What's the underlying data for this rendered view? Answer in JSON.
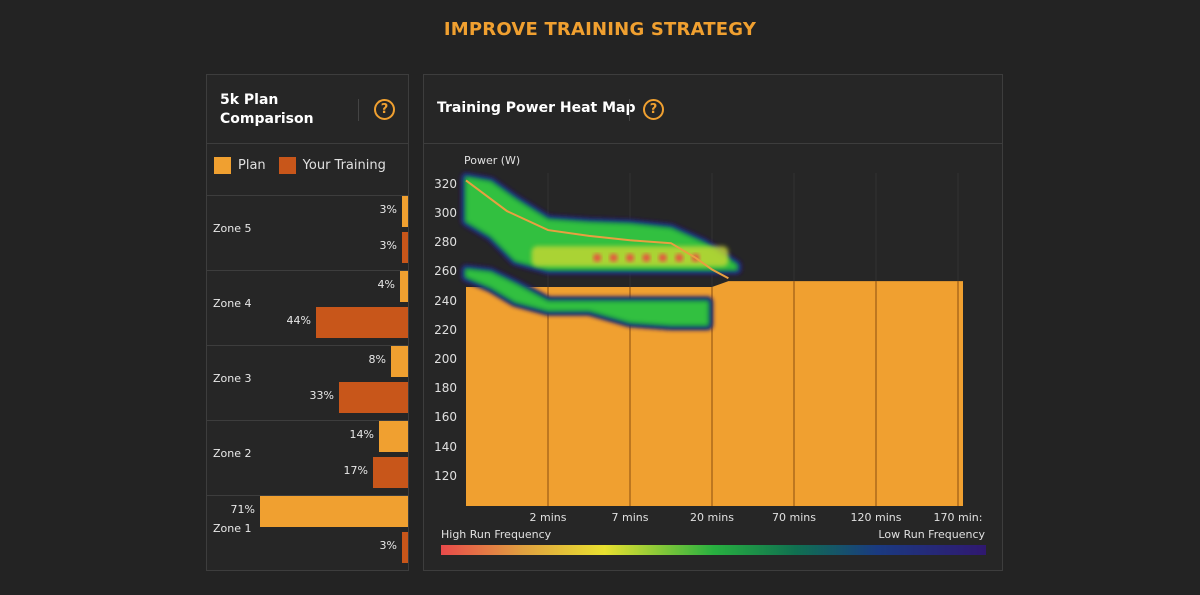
{
  "page_title": "IMPROVE TRAINING STRATEGY",
  "colors": {
    "accent": "#f0a030",
    "plan": "#f0a030",
    "your_training": "#c8561a",
    "background": "#232323",
    "card": "#262626"
  },
  "left_panel": {
    "title_line1": "5k Plan",
    "title_line2": "Comparison",
    "help_icon": "?",
    "legend": [
      {
        "label": "Plan",
        "color": "#f0a030"
      },
      {
        "label": "Your Training",
        "color": "#c8561a"
      }
    ],
    "zones": [
      {
        "label": "Zone 5",
        "plan": 3,
        "plan_label": "3%",
        "yours": 3,
        "yours_label": "3%"
      },
      {
        "label": "Zone 4",
        "plan": 4,
        "plan_label": "4%",
        "yours": 44,
        "yours_label": "44%"
      },
      {
        "label": "Zone 3",
        "plan": 8,
        "plan_label": "8%",
        "yours": 33,
        "yours_label": "33%"
      },
      {
        "label": "Zone 2",
        "plan": 14,
        "plan_label": "14%",
        "yours": 17,
        "yours_label": "17%"
      },
      {
        "label": "Zone 1",
        "plan": 71,
        "plan_label": "71%",
        "yours": 3,
        "yours_label": "3%"
      }
    ]
  },
  "right_panel": {
    "title": "Training Power Heat Map",
    "help_icon": "?",
    "freq_high": "High Run Frequency",
    "freq_low": "Low Run Frequency"
  },
  "chart_data": {
    "type": "heatmap",
    "ylabel": "Power (W)",
    "ylim": [
      100,
      330
    ],
    "yticks": [
      "320",
      "300",
      "280",
      "260",
      "240",
      "220",
      "200",
      "180",
      "160",
      "140",
      "120"
    ],
    "ytick_values": [
      320,
      300,
      280,
      260,
      240,
      220,
      200,
      180,
      160,
      140,
      120
    ],
    "xticks": [
      "2 mins",
      "7 mins",
      "20 mins",
      "70 mins",
      "120 mins",
      "170 min:"
    ],
    "plan_power_area": [
      {
        "x": 0,
        "y": 250
      },
      {
        "x": 1,
        "y": 250
      },
      {
        "x": 2,
        "y": 250
      },
      {
        "x": 3,
        "y": 253
      },
      {
        "x": 3.2,
        "y": 254
      },
      {
        "x": 6,
        "y": 254
      }
    ],
    "power_curve": [
      {
        "x": 0,
        "y": 323
      },
      {
        "x": 0.5,
        "y": 302
      },
      {
        "x": 1,
        "y": 289
      },
      {
        "x": 1.5,
        "y": 285
      },
      {
        "x": 2,
        "y": 282
      },
      {
        "x": 2.5,
        "y": 280
      },
      {
        "x": 2.8,
        "y": 270
      },
      {
        "x": 3,
        "y": 262
      },
      {
        "x": 3.2,
        "y": 256
      }
    ],
    "bands": [
      {
        "name": "upper",
        "points": [
          [
            0,
            325,
            295
          ],
          [
            0.3,
            322,
            285
          ],
          [
            0.6,
            310,
            268
          ],
          [
            1,
            296,
            262
          ],
          [
            1.5,
            294,
            262
          ],
          [
            2,
            293,
            262
          ],
          [
            2.5,
            290,
            262
          ],
          [
            2.9,
            280,
            262
          ],
          [
            3.3,
            265,
            262
          ]
        ]
      },
      {
        "name": "lower",
        "points": [
          [
            0,
            262,
            257
          ],
          [
            0.3,
            260,
            250
          ],
          [
            0.6,
            252,
            240
          ],
          [
            1,
            240,
            234
          ],
          [
            1.5,
            240,
            234
          ],
          [
            2,
            240,
            226
          ],
          [
            2.5,
            240,
            224
          ],
          [
            2.95,
            240,
            224
          ]
        ]
      }
    ],
    "hotspots": [
      {
        "x": 1.6,
        "y": 270
      },
      {
        "x": 1.8,
        "y": 270
      },
      {
        "x": 2.0,
        "y": 270
      },
      {
        "x": 2.2,
        "y": 270
      },
      {
        "x": 2.4,
        "y": 270
      },
      {
        "x": 2.6,
        "y": 270
      },
      {
        "x": 2.8,
        "y": 270
      }
    ],
    "colorscale": [
      "#e84a4a",
      "#e8e030",
      "#28b040",
      "#107050",
      "#1a3a80",
      "#301870"
    ]
  }
}
